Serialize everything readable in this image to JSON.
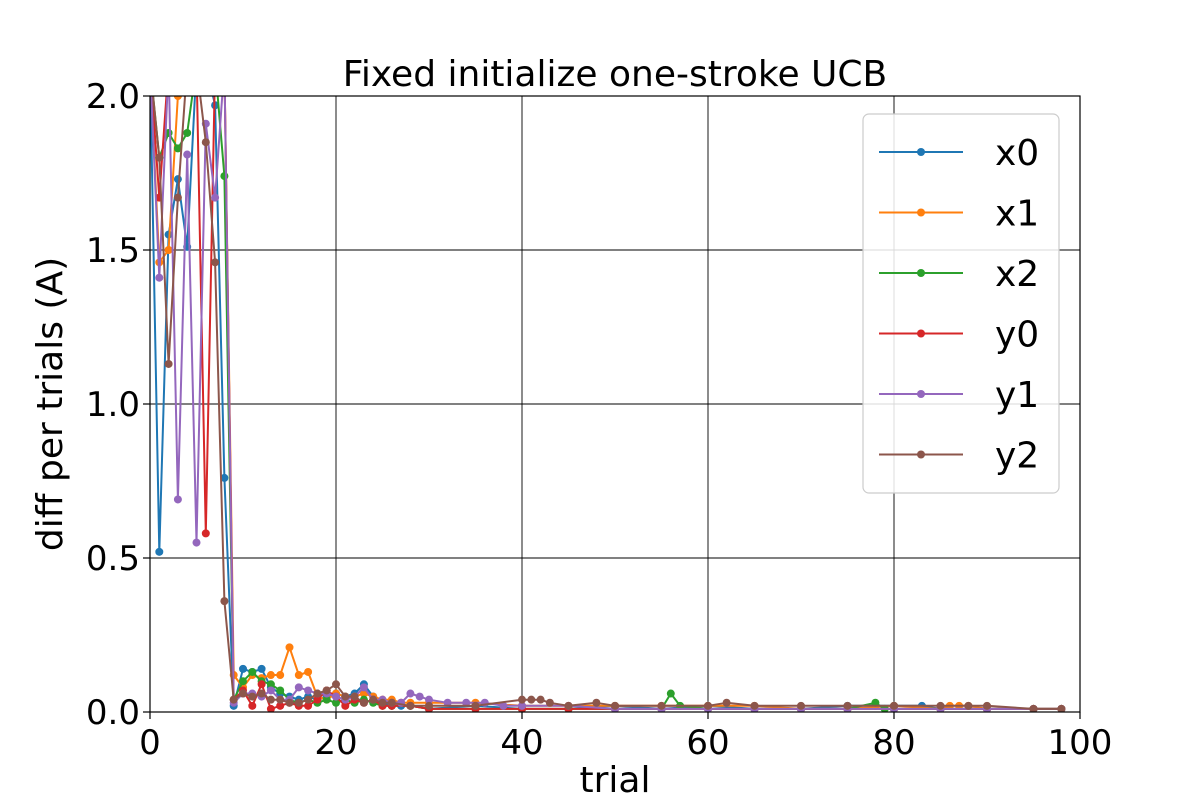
{
  "chart_data": {
    "type": "line",
    "title": "Fixed initialize one-stroke UCB",
    "xlabel": "trial",
    "ylabel": "diff  per  trials (A)",
    "xlim": [
      0,
      100
    ],
    "ylim": [
      0,
      2.0
    ],
    "xticks": [
      0,
      20,
      40,
      60,
      80,
      100
    ],
    "xtick_labels": [
      "0",
      "20",
      "40",
      "60",
      "80",
      "100"
    ],
    "yticks": [
      0.0,
      0.5,
      1.0,
      1.5,
      2.0
    ],
    "ytick_labels": [
      "0.0",
      "0.5",
      "1.0",
      "1.5",
      "2.0"
    ],
    "grid": true,
    "legend_position": "top-right",
    "series": [
      {
        "name": "x0",
        "color": "#1f77b4",
        "x": [
          0,
          1,
          2,
          3,
          4,
          5,
          6,
          7,
          8,
          9,
          10,
          11,
          12,
          13,
          14,
          15,
          16,
          17,
          18,
          19,
          20,
          21,
          22,
          23,
          24,
          25,
          26,
          27,
          28,
          30,
          35,
          40,
          45,
          50,
          55,
          60,
          65,
          70,
          75,
          78,
          80,
          83,
          85,
          90,
          95,
          98
        ],
        "y": [
          2.1,
          0.52,
          1.55,
          1.73,
          1.51,
          2.1,
          2.1,
          1.97,
          0.76,
          0.02,
          0.14,
          0.13,
          0.14,
          0.08,
          0.06,
          0.05,
          0.04,
          0.05,
          0.04,
          0.05,
          0.06,
          0.05,
          0.06,
          0.09,
          0.05,
          0.03,
          0.02,
          0.02,
          0.02,
          0.01,
          0.02,
          0.01,
          0.01,
          0.02,
          0.01,
          0.02,
          0.01,
          0.01,
          0.02,
          0.02,
          0.02,
          0.02,
          0.01,
          0.01,
          0.01,
          0.01
        ]
      },
      {
        "name": "x1",
        "color": "#ff7f0e",
        "x": [
          0,
          1,
          2,
          3,
          4,
          5,
          6,
          7,
          8,
          9,
          10,
          11,
          12,
          13,
          14,
          15,
          16,
          17,
          18,
          19,
          20,
          21,
          22,
          23,
          24,
          25,
          26,
          27,
          28,
          30,
          35,
          40,
          45,
          50,
          55,
          60,
          65,
          70,
          75,
          80,
          85,
          86,
          87,
          88,
          90,
          95,
          98
        ],
        "y": [
          2.1,
          1.46,
          1.5,
          2.0,
          2.1,
          2.1,
          2.1,
          2.1,
          2.1,
          0.12,
          0.08,
          0.12,
          0.11,
          0.12,
          0.12,
          0.21,
          0.12,
          0.13,
          0.05,
          0.04,
          0.06,
          0.05,
          0.05,
          0.06,
          0.05,
          0.04,
          0.04,
          0.03,
          0.03,
          0.03,
          0.03,
          0.02,
          0.02,
          0.02,
          0.02,
          0.02,
          0.02,
          0.01,
          0.01,
          0.02,
          0.01,
          0.02,
          0.02,
          0.02,
          0.01,
          0.01,
          0.01
        ]
      },
      {
        "name": "x2",
        "color": "#2ca02c",
        "x": [
          0,
          1,
          2,
          3,
          4,
          5,
          6,
          7,
          8,
          9,
          10,
          11,
          12,
          13,
          14,
          15,
          16,
          17,
          18,
          19,
          20,
          21,
          22,
          23,
          24,
          25,
          26,
          28,
          30,
          35,
          40,
          45,
          50,
          55,
          56,
          57,
          60,
          65,
          70,
          75,
          78,
          79,
          80,
          85,
          90,
          95,
          98
        ],
        "y": [
          2.1,
          1.8,
          1.88,
          1.83,
          1.88,
          2.1,
          2.1,
          2.1,
          1.74,
          0.04,
          0.1,
          0.13,
          0.1,
          0.09,
          0.07,
          0.04,
          0.03,
          0.04,
          0.03,
          0.04,
          0.03,
          0.04,
          0.03,
          0.04,
          0.03,
          0.02,
          0.02,
          0.02,
          0.01,
          0.01,
          0.01,
          0.01,
          0.01,
          0.01,
          0.06,
          0.02,
          0.01,
          0.01,
          0.01,
          0.01,
          0.03,
          0.01,
          0.01,
          0.01,
          0.01,
          0.01,
          0.01
        ]
      },
      {
        "name": "y0",
        "color": "#d62728",
        "x": [
          0,
          1,
          2,
          3,
          4,
          5,
          6,
          7,
          8,
          9,
          10,
          11,
          12,
          13,
          14,
          15,
          16,
          17,
          18,
          19,
          20,
          21,
          22,
          23,
          24,
          25,
          26,
          28,
          30,
          35,
          40,
          45,
          50,
          55,
          60,
          65,
          70,
          75,
          80,
          85,
          90,
          95,
          98
        ],
        "y": [
          2.1,
          1.67,
          2.1,
          2.1,
          2.1,
          2.1,
          0.58,
          2.1,
          2.1,
          0.04,
          0.07,
          0.02,
          0.09,
          0.01,
          0.02,
          0.03,
          0.02,
          0.02,
          0.04,
          0.07,
          0.05,
          0.02,
          0.04,
          0.03,
          0.04,
          0.02,
          0.02,
          0.02,
          0.01,
          0.01,
          0.01,
          0.01,
          0.01,
          0.01,
          0.01,
          0.01,
          0.01,
          0.01,
          0.01,
          0.01,
          0.01,
          0.01,
          0.01
        ]
      },
      {
        "name": "y1",
        "color": "#9467bd",
        "x": [
          0,
          1,
          2,
          3,
          4,
          5,
          6,
          7,
          8,
          9,
          10,
          11,
          12,
          13,
          14,
          15,
          16,
          17,
          18,
          19,
          20,
          21,
          22,
          23,
          24,
          25,
          26,
          27,
          28,
          29,
          30,
          32,
          34,
          36,
          38,
          40,
          45,
          50,
          55,
          60,
          65,
          70,
          75,
          80,
          85,
          90,
          95,
          98
        ],
        "y": [
          2.1,
          1.41,
          2.1,
          0.69,
          1.81,
          0.55,
          1.91,
          1.67,
          2.1,
          0.03,
          0.06,
          0.06,
          0.05,
          0.07,
          0.04,
          0.04,
          0.08,
          0.07,
          0.06,
          0.06,
          0.05,
          0.04,
          0.05,
          0.08,
          0.04,
          0.04,
          0.03,
          0.03,
          0.06,
          0.05,
          0.04,
          0.03,
          0.03,
          0.03,
          0.02,
          0.02,
          0.02,
          0.01,
          0.01,
          0.01,
          0.01,
          0.01,
          0.01,
          0.01,
          0.01,
          0.01,
          0.01,
          0.01
        ]
      },
      {
        "name": "y2",
        "color": "#8c564b",
        "x": [
          0,
          1,
          2,
          3,
          4,
          5,
          6,
          7,
          8,
          9,
          10,
          11,
          12,
          13,
          14,
          15,
          16,
          17,
          18,
          19,
          20,
          21,
          22,
          23,
          24,
          25,
          26,
          28,
          30,
          35,
          40,
          41,
          42,
          43,
          45,
          48,
          50,
          55,
          60,
          62,
          65,
          70,
          75,
          80,
          85,
          88,
          90,
          95,
          98
        ],
        "y": [
          2.1,
          1.8,
          1.13,
          1.67,
          2.1,
          2.1,
          1.85,
          1.46,
          0.36,
          0.04,
          0.06,
          0.05,
          0.06,
          0.04,
          0.04,
          0.03,
          0.03,
          0.04,
          0.06,
          0.07,
          0.09,
          0.05,
          0.05,
          0.03,
          0.04,
          0.03,
          0.03,
          0.02,
          0.02,
          0.02,
          0.04,
          0.04,
          0.04,
          0.03,
          0.02,
          0.03,
          0.02,
          0.02,
          0.02,
          0.03,
          0.02,
          0.02,
          0.02,
          0.02,
          0.02,
          0.02,
          0.02,
          0.01,
          0.01
        ]
      }
    ]
  }
}
